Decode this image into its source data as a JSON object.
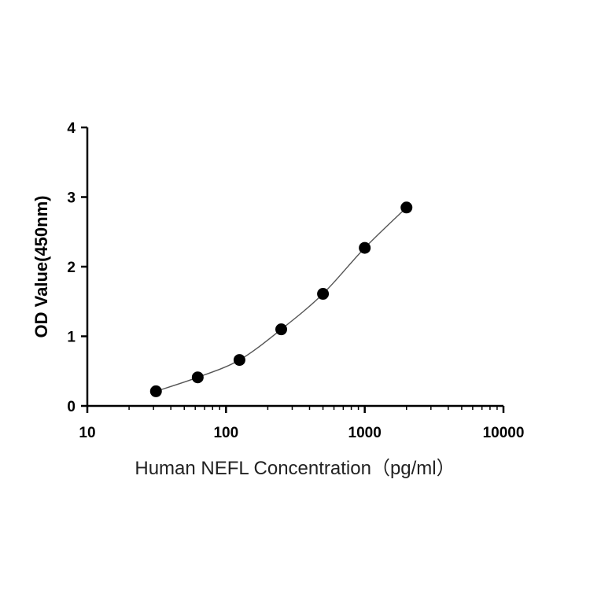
{
  "chart_data": {
    "type": "scatter",
    "xscale": "log",
    "xlabel": "Human NEFL Concentration（pg/ml）",
    "ylabel": "OD Value(450nm)",
    "xlim": [
      10,
      10000
    ],
    "ylim": [
      0,
      4
    ],
    "x_ticks": [
      10,
      100,
      1000,
      10000
    ],
    "x_tick_labels": [
      "10",
      "100",
      "1000",
      "10000"
    ],
    "y_ticks": [
      0,
      1,
      2,
      3,
      4
    ],
    "y_tick_labels": [
      "0",
      "1",
      "2",
      "3",
      "4"
    ],
    "grid": false,
    "series": [
      {
        "x": [
          31.25,
          62.5,
          125,
          250,
          500,
          1000,
          2000
        ],
        "y": [
          0.21,
          0.41,
          0.66,
          1.1,
          1.61,
          2.27,
          2.85
        ]
      }
    ],
    "colors": {
      "points": "#000000",
      "curve": "#555555"
    }
  }
}
